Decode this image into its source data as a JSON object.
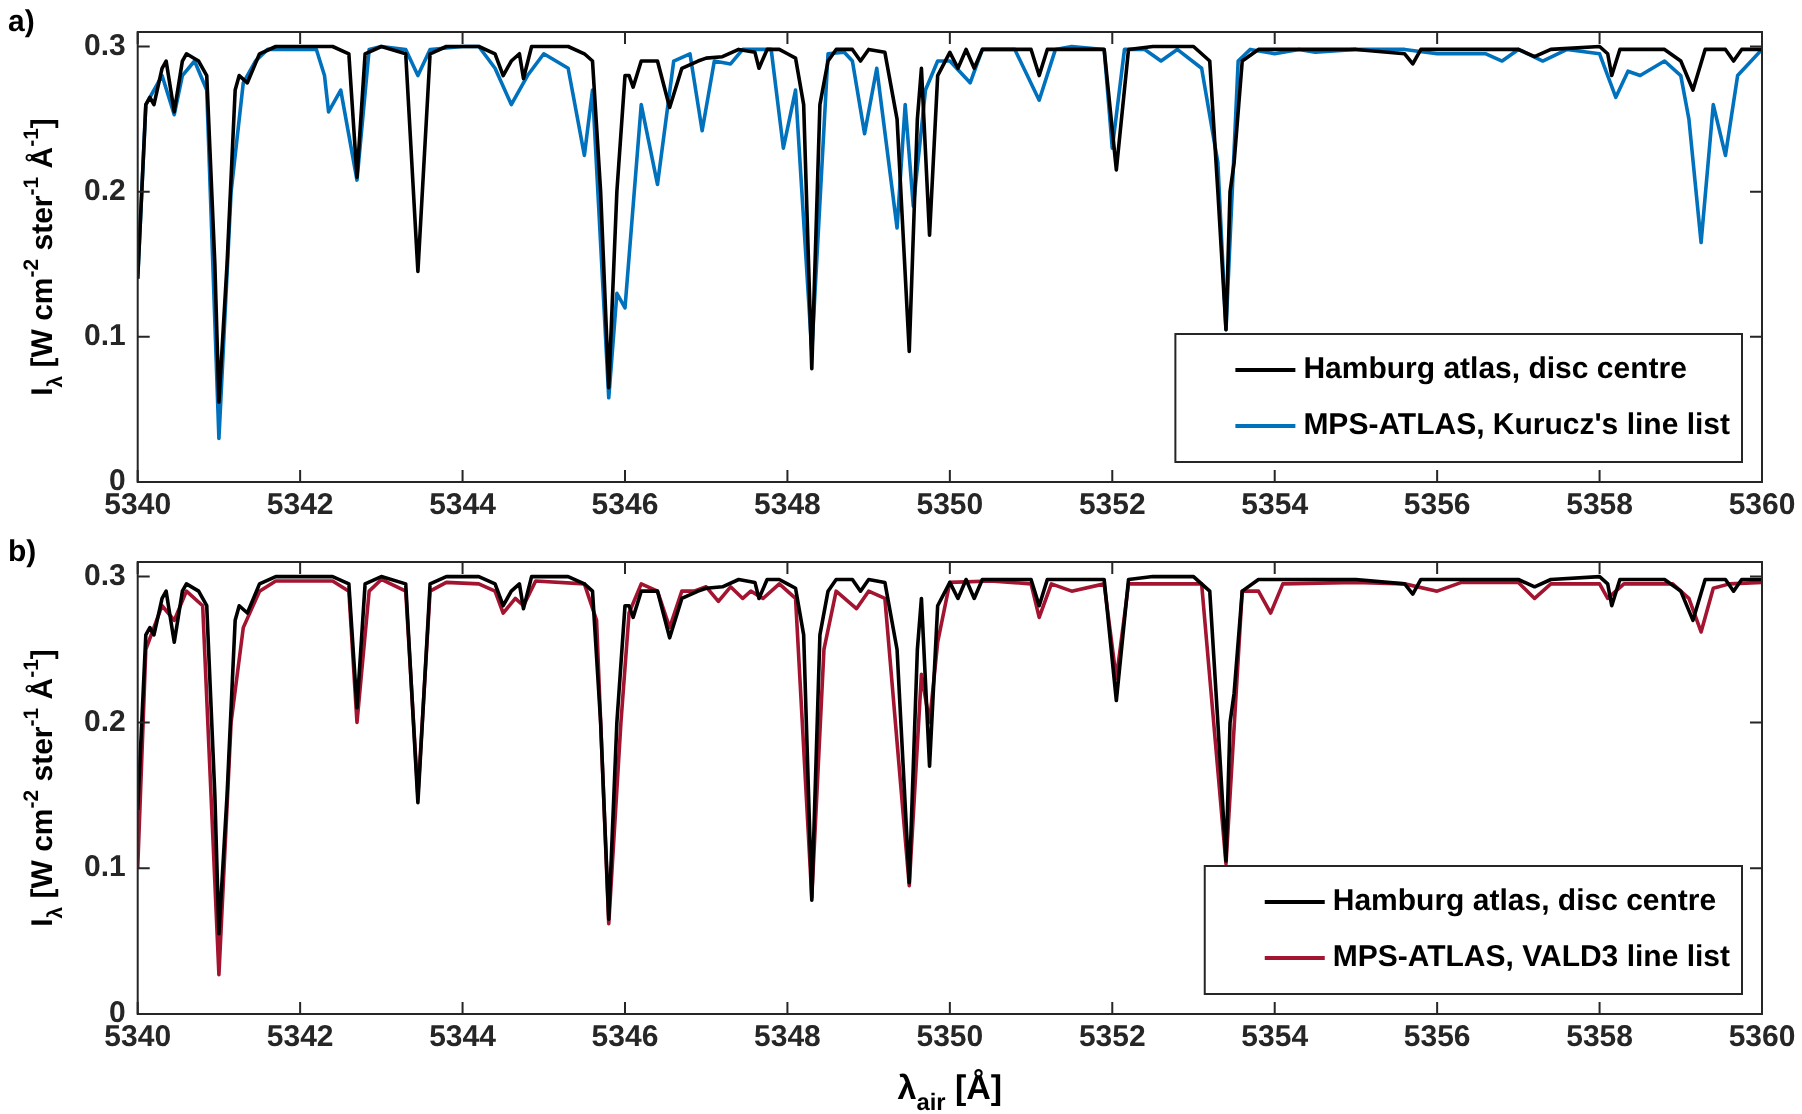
{
  "chart_data": [
    {
      "type": "line",
      "annotations": [
        "a)"
      ],
      "ylabel": "I$_{λ}$ [W cm$^{-2}$ ster$^{-1}$ Å$^{-1}$]",
      "xlim": [
        5340,
        5360
      ],
      "xticks": [
        5340,
        5342,
        5344,
        5346,
        5348,
        5350,
        5352,
        5354,
        5356,
        5358,
        5360
      ],
      "ylim": [
        0,
        0.31
      ],
      "yticks": [
        0,
        0.1,
        0.2,
        0.3
      ],
      "legend": "bottom right",
      "series": [
        {
          "name": "Hamburg atlas, disc centre",
          "color": "#000000",
          "x": [
            5340.0,
            5340.1,
            5340.15,
            5340.2,
            5340.3,
            5340.35,
            5340.45,
            5340.55,
            5340.6,
            5340.75,
            5340.85,
            5340.95,
            5341.0,
            5341.1,
            5341.2,
            5341.25,
            5341.35,
            5341.5,
            5341.7,
            5342.0,
            5342.4,
            5342.6,
            5342.7,
            5342.8,
            5343.0,
            5343.3,
            5343.45,
            5343.6,
            5343.8,
            5344.0,
            5344.2,
            5344.4,
            5344.5,
            5344.6,
            5344.7,
            5344.75,
            5344.85,
            5345.0,
            5345.3,
            5345.5,
            5345.6,
            5345.7,
            5345.8,
            5345.9,
            5346.0,
            5346.05,
            5346.1,
            5346.2,
            5346.4,
            5346.55,
            5346.7,
            5346.9,
            5347.0,
            5347.2,
            5347.4,
            5347.6,
            5347.65,
            5347.75,
            5347.9,
            5348.0,
            5348.1,
            5348.2,
            5348.3,
            5348.4,
            5348.5,
            5348.6,
            5348.8,
            5348.9,
            5349.0,
            5349.2,
            5349.35,
            5349.5,
            5349.6,
            5349.65,
            5349.75,
            5349.85,
            5350.0,
            5350.1,
            5350.2,
            5350.3,
            5350.4,
            5351.0,
            5351.1,
            5351.2,
            5351.9,
            5352.05,
            5352.2,
            5352.5,
            5353.0,
            5353.2,
            5353.3,
            5353.4,
            5353.45,
            5353.5,
            5353.6,
            5353.8,
            5354.5,
            5355.0,
            5355.6,
            5355.7,
            5355.8,
            5356.5,
            5357.0,
            5357.2,
            5357.4,
            5358.0,
            5358.1,
            5358.15,
            5358.25,
            5358.8,
            5359.0,
            5359.15,
            5359.3,
            5359.55,
            5359.65,
            5359.75,
            5360.0
          ],
          "values": [
            0.14,
            0.26,
            0.265,
            0.26,
            0.285,
            0.29,
            0.255,
            0.29,
            0.295,
            0.29,
            0.28,
            0.15,
            0.055,
            0.15,
            0.27,
            0.28,
            0.275,
            0.295,
            0.3,
            0.3,
            0.3,
            0.295,
            0.21,
            0.295,
            0.3,
            0.295,
            0.145,
            0.295,
            0.3,
            0.3,
            0.3,
            0.295,
            0.28,
            0.29,
            0.295,
            0.278,
            0.3,
            0.3,
            0.3,
            0.295,
            0.29,
            0.2,
            0.065,
            0.2,
            0.28,
            0.28,
            0.272,
            0.29,
            0.29,
            0.258,
            0.285,
            0.29,
            0.292,
            0.293,
            0.298,
            0.296,
            0.285,
            0.298,
            0.298,
            0.295,
            0.292,
            0.26,
            0.078,
            0.26,
            0.29,
            0.298,
            0.298,
            0.29,
            0.298,
            0.296,
            0.25,
            0.09,
            0.25,
            0.285,
            0.17,
            0.28,
            0.296,
            0.285,
            0.298,
            0.285,
            0.298,
            0.298,
            0.28,
            0.298,
            0.298,
            0.215,
            0.298,
            0.3,
            0.3,
            0.29,
            0.2,
            0.105,
            0.2,
            0.22,
            0.29,
            0.298,
            0.298,
            0.298,
            0.295,
            0.288,
            0.298,
            0.298,
            0.298,
            0.293,
            0.298,
            0.3,
            0.295,
            0.28,
            0.298,
            0.298,
            0.29,
            0.27,
            0.298,
            0.298,
            0.29,
            0.298,
            0.298
          ]
        },
        {
          "name": "MPS-ATLAS, Kurucz's line list",
          "color": "#0072bd",
          "x": [
            5340.0,
            5340.1,
            5340.3,
            5340.45,
            5340.55,
            5340.7,
            5340.85,
            5341.0,
            5341.15,
            5341.3,
            5341.45,
            5341.6,
            5342.0,
            5342.2,
            5342.3,
            5342.35,
            5342.5,
            5342.7,
            5342.85,
            5343.0,
            5343.3,
            5343.45,
            5343.6,
            5344.0,
            5344.2,
            5344.4,
            5344.6,
            5344.8,
            5345.0,
            5345.3,
            5345.5,
            5345.6,
            5345.8,
            5345.9,
            5346.0,
            5346.2,
            5346.4,
            5346.6,
            5346.8,
            5346.95,
            5347.1,
            5347.3,
            5347.45,
            5347.6,
            5347.8,
            5347.95,
            5348.1,
            5348.3,
            5348.5,
            5348.7,
            5348.8,
            5348.95,
            5349.1,
            5349.35,
            5349.45,
            5349.55,
            5349.7,
            5349.85,
            5350.0,
            5350.25,
            5350.4,
            5350.8,
            5351.1,
            5351.3,
            5351.5,
            5351.9,
            5352.0,
            5352.15,
            5352.4,
            5352.6,
            5352.8,
            5353.1,
            5353.3,
            5353.4,
            5353.55,
            5353.7,
            5354.0,
            5354.3,
            5354.5,
            5355.0,
            5355.3,
            5355.6,
            5356.0,
            5356.6,
            5356.8,
            5357.0,
            5357.3,
            5357.6,
            5358.0,
            5358.2,
            5358.35,
            5358.5,
            5358.8,
            5359.0,
            5359.1,
            5359.25,
            5359.4,
            5359.55,
            5359.7,
            5360.0
          ],
          "values": [
            0.14,
            0.26,
            0.28,
            0.253,
            0.28,
            0.29,
            0.27,
            0.03,
            0.2,
            0.275,
            0.29,
            0.298,
            0.298,
            0.298,
            0.28,
            0.255,
            0.27,
            0.208,
            0.298,
            0.3,
            0.298,
            0.28,
            0.298,
            0.3,
            0.3,
            0.285,
            0.26,
            0.28,
            0.295,
            0.285,
            0.225,
            0.27,
            0.058,
            0.13,
            0.12,
            0.26,
            0.205,
            0.29,
            0.295,
            0.242,
            0.29,
            0.288,
            0.298,
            0.298,
            0.298,
            0.23,
            0.27,
            0.09,
            0.295,
            0.296,
            0.29,
            0.24,
            0.285,
            0.175,
            0.26,
            0.19,
            0.27,
            0.29,
            0.29,
            0.275,
            0.298,
            0.298,
            0.263,
            0.298,
            0.3,
            0.298,
            0.23,
            0.298,
            0.298,
            0.29,
            0.298,
            0.285,
            0.22,
            0.105,
            0.29,
            0.298,
            0.295,
            0.298,
            0.296,
            0.298,
            0.298,
            0.298,
            0.295,
            0.295,
            0.29,
            0.298,
            0.29,
            0.298,
            0.295,
            0.265,
            0.283,
            0.28,
            0.29,
            0.28,
            0.25,
            0.165,
            0.26,
            0.225,
            0.28,
            0.298
          ]
        }
      ]
    },
    {
      "type": "line",
      "annotations": [
        "b)"
      ],
      "xlabel": "λ$_{air}$ [Å]",
      "ylabel": "I$_{λ}$ [W cm$^{-2}$ ster$^{-1}$ Å$^{-1}$]",
      "xlim": [
        5340,
        5360
      ],
      "xticks": [
        5340,
        5342,
        5344,
        5346,
        5348,
        5350,
        5352,
        5354,
        5356,
        5358,
        5360
      ],
      "ylim": [
        0,
        0.31
      ],
      "yticks": [
        0,
        0.1,
        0.2,
        0.3
      ],
      "legend": "bottom right",
      "series": [
        {
          "name": "Hamburg atlas, disc centre",
          "color": "#000000",
          "x": [
            5340.0,
            5340.1,
            5340.15,
            5340.2,
            5340.3,
            5340.35,
            5340.45,
            5340.55,
            5340.6,
            5340.75,
            5340.85,
            5340.95,
            5341.0,
            5341.1,
            5341.2,
            5341.25,
            5341.35,
            5341.5,
            5341.7,
            5342.0,
            5342.4,
            5342.6,
            5342.7,
            5342.8,
            5343.0,
            5343.3,
            5343.45,
            5343.6,
            5343.8,
            5344.0,
            5344.2,
            5344.4,
            5344.5,
            5344.6,
            5344.7,
            5344.75,
            5344.85,
            5345.0,
            5345.3,
            5345.5,
            5345.6,
            5345.7,
            5345.8,
            5345.9,
            5346.0,
            5346.05,
            5346.1,
            5346.2,
            5346.4,
            5346.55,
            5346.7,
            5346.9,
            5347.0,
            5347.2,
            5347.4,
            5347.6,
            5347.65,
            5347.75,
            5347.9,
            5348.0,
            5348.1,
            5348.2,
            5348.3,
            5348.4,
            5348.5,
            5348.6,
            5348.8,
            5348.9,
            5349.0,
            5349.2,
            5349.35,
            5349.5,
            5349.6,
            5349.65,
            5349.75,
            5349.85,
            5350.0,
            5350.1,
            5350.2,
            5350.3,
            5350.4,
            5351.0,
            5351.1,
            5351.2,
            5351.9,
            5352.05,
            5352.2,
            5352.5,
            5353.0,
            5353.2,
            5353.3,
            5353.4,
            5353.45,
            5353.5,
            5353.6,
            5353.8,
            5354.5,
            5355.0,
            5355.6,
            5355.7,
            5355.8,
            5356.5,
            5357.0,
            5357.2,
            5357.4,
            5358.0,
            5358.1,
            5358.15,
            5358.25,
            5358.8,
            5359.0,
            5359.15,
            5359.3,
            5359.55,
            5359.65,
            5359.75,
            5360.0
          ],
          "values": [
            0.14,
            0.26,
            0.265,
            0.26,
            0.285,
            0.29,
            0.255,
            0.29,
            0.295,
            0.29,
            0.28,
            0.15,
            0.055,
            0.15,
            0.27,
            0.28,
            0.275,
            0.295,
            0.3,
            0.3,
            0.3,
            0.295,
            0.21,
            0.295,
            0.3,
            0.295,
            0.145,
            0.295,
            0.3,
            0.3,
            0.3,
            0.295,
            0.28,
            0.29,
            0.295,
            0.278,
            0.3,
            0.3,
            0.3,
            0.295,
            0.29,
            0.2,
            0.065,
            0.2,
            0.28,
            0.28,
            0.272,
            0.29,
            0.29,
            0.258,
            0.285,
            0.29,
            0.292,
            0.293,
            0.298,
            0.296,
            0.285,
            0.298,
            0.298,
            0.295,
            0.292,
            0.26,
            0.078,
            0.26,
            0.29,
            0.298,
            0.298,
            0.29,
            0.298,
            0.296,
            0.25,
            0.09,
            0.25,
            0.285,
            0.17,
            0.28,
            0.296,
            0.285,
            0.298,
            0.285,
            0.298,
            0.298,
            0.28,
            0.298,
            0.298,
            0.215,
            0.298,
            0.3,
            0.3,
            0.29,
            0.2,
            0.105,
            0.2,
            0.22,
            0.29,
            0.298,
            0.298,
            0.298,
            0.295,
            0.288,
            0.298,
            0.298,
            0.298,
            0.293,
            0.298,
            0.3,
            0.295,
            0.28,
            0.298,
            0.298,
            0.29,
            0.27,
            0.298,
            0.298,
            0.29,
            0.298,
            0.298
          ]
        },
        {
          "name": "MPS-ATLAS, VALD3 line list",
          "color": "#a2142f",
          "x": [
            5340.0,
            5340.1,
            5340.3,
            5340.45,
            5340.6,
            5340.8,
            5341.0,
            5341.15,
            5341.3,
            5341.5,
            5341.7,
            5342.4,
            5342.6,
            5342.7,
            5342.85,
            5343.0,
            5343.3,
            5343.45,
            5343.6,
            5343.8,
            5344.2,
            5344.4,
            5344.5,
            5344.65,
            5344.75,
            5344.9,
            5345.5,
            5345.65,
            5345.8,
            5345.95,
            5346.05,
            5346.2,
            5346.4,
            5346.55,
            5346.7,
            5346.85,
            5347.0,
            5347.15,
            5347.3,
            5347.45,
            5347.55,
            5347.7,
            5347.9,
            5348.1,
            5348.3,
            5348.45,
            5348.6,
            5348.85,
            5349.0,
            5349.2,
            5349.5,
            5349.65,
            5349.75,
            5349.85,
            5350.0,
            5350.5,
            5351.0,
            5351.1,
            5351.25,
            5351.5,
            5351.9,
            5352.05,
            5352.2,
            5353.1,
            5353.4,
            5353.6,
            5353.8,
            5353.95,
            5354.1,
            5355.0,
            5355.6,
            5356.0,
            5356.3,
            5357.0,
            5357.2,
            5357.4,
            5358.0,
            5358.1,
            5358.3,
            5358.9,
            5359.1,
            5359.25,
            5359.4,
            5359.6,
            5360.0
          ],
          "values": [
            0.1,
            0.25,
            0.28,
            0.27,
            0.29,
            0.28,
            0.027,
            0.2,
            0.265,
            0.29,
            0.297,
            0.297,
            0.29,
            0.2,
            0.29,
            0.298,
            0.29,
            0.15,
            0.29,
            0.296,
            0.295,
            0.29,
            0.275,
            0.285,
            0.28,
            0.297,
            0.295,
            0.27,
            0.062,
            0.2,
            0.275,
            0.295,
            0.29,
            0.265,
            0.29,
            0.29,
            0.293,
            0.283,
            0.293,
            0.285,
            0.29,
            0.285,
            0.295,
            0.285,
            0.08,
            0.25,
            0.29,
            0.278,
            0.29,
            0.285,
            0.088,
            0.233,
            0.2,
            0.255,
            0.296,
            0.297,
            0.295,
            0.272,
            0.295,
            0.29,
            0.295,
            0.23,
            0.295,
            0.295,
            0.103,
            0.29,
            0.29,
            0.275,
            0.295,
            0.296,
            0.295,
            0.29,
            0.296,
            0.296,
            0.285,
            0.295,
            0.295,
            0.285,
            0.295,
            0.295,
            0.285,
            0.262,
            0.292,
            0.295,
            0.296
          ]
        }
      ]
    }
  ]
}
